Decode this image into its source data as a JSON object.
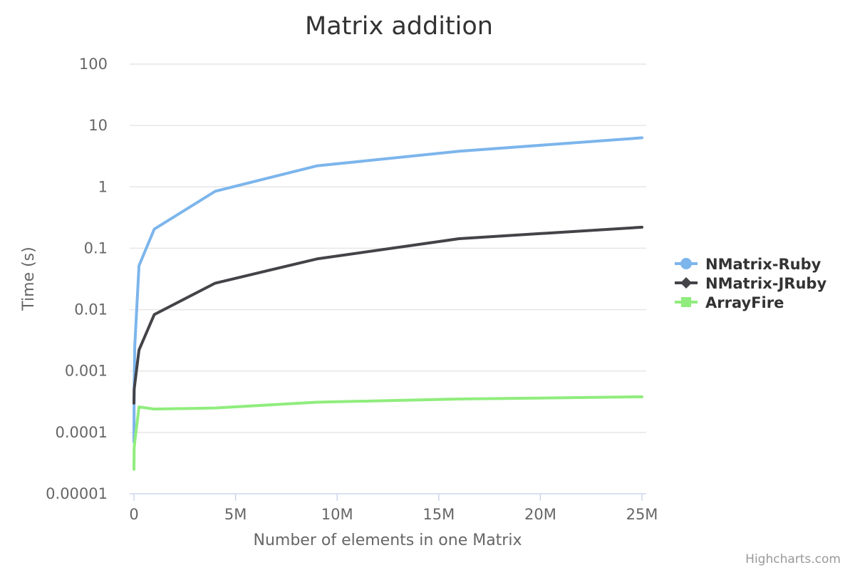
{
  "credits": "Highcharts.com",
  "chart_data": {
    "type": "line",
    "title": "Matrix addition",
    "xlabel": "Number of elements in one Matrix",
    "ylabel": "Time (s)",
    "yscale": "log",
    "xlim": [
      0,
      25000000
    ],
    "ylim": [
      1e-05,
      100
    ],
    "grid": true,
    "legend_position": "right",
    "x_ticks": [
      {
        "value": 0,
        "label": "0"
      },
      {
        "value": 5000000,
        "label": "5M"
      },
      {
        "value": 10000000,
        "label": "10M"
      },
      {
        "value": 15000000,
        "label": "15M"
      },
      {
        "value": 20000000,
        "label": "20M"
      },
      {
        "value": 25000000,
        "label": "25M"
      }
    ],
    "y_ticks": [
      {
        "value": 1e-05,
        "label": "0.00001"
      },
      {
        "value": 0.0001,
        "label": "0.0001"
      },
      {
        "value": 0.001,
        "label": "0.001"
      },
      {
        "value": 0.01,
        "label": "0.01"
      },
      {
        "value": 0.1,
        "label": "0.1"
      },
      {
        "value": 1,
        "label": "1"
      },
      {
        "value": 10,
        "label": "10"
      },
      {
        "value": 100,
        "label": "100"
      }
    ],
    "x": [
      100,
      10000,
      40000,
      250000,
      1000000,
      4000000,
      9000000,
      16000000,
      25000000
    ],
    "series": [
      {
        "name": "NMatrix-Ruby",
        "color": "#7cb5ec",
        "marker": "circle",
        "values": [
          7e-05,
          0.0005,
          0.0025,
          0.052,
          0.205,
          0.85,
          2.2,
          3.8,
          6.3
        ]
      },
      {
        "name": "NMatrix-JRuby",
        "color": "#434348",
        "marker": "diamond",
        "values": [
          0.0003,
          0.0005,
          0.0006,
          0.0022,
          0.0083,
          0.027,
          0.067,
          0.143,
          0.22
        ]
      },
      {
        "name": "ArrayFire",
        "color": "#90ed7d",
        "marker": "square",
        "values": [
          2.5e-05,
          5.5e-05,
          7e-05,
          0.00026,
          0.00024,
          0.00025,
          0.00031,
          0.00035,
          0.00038
        ]
      }
    ]
  }
}
